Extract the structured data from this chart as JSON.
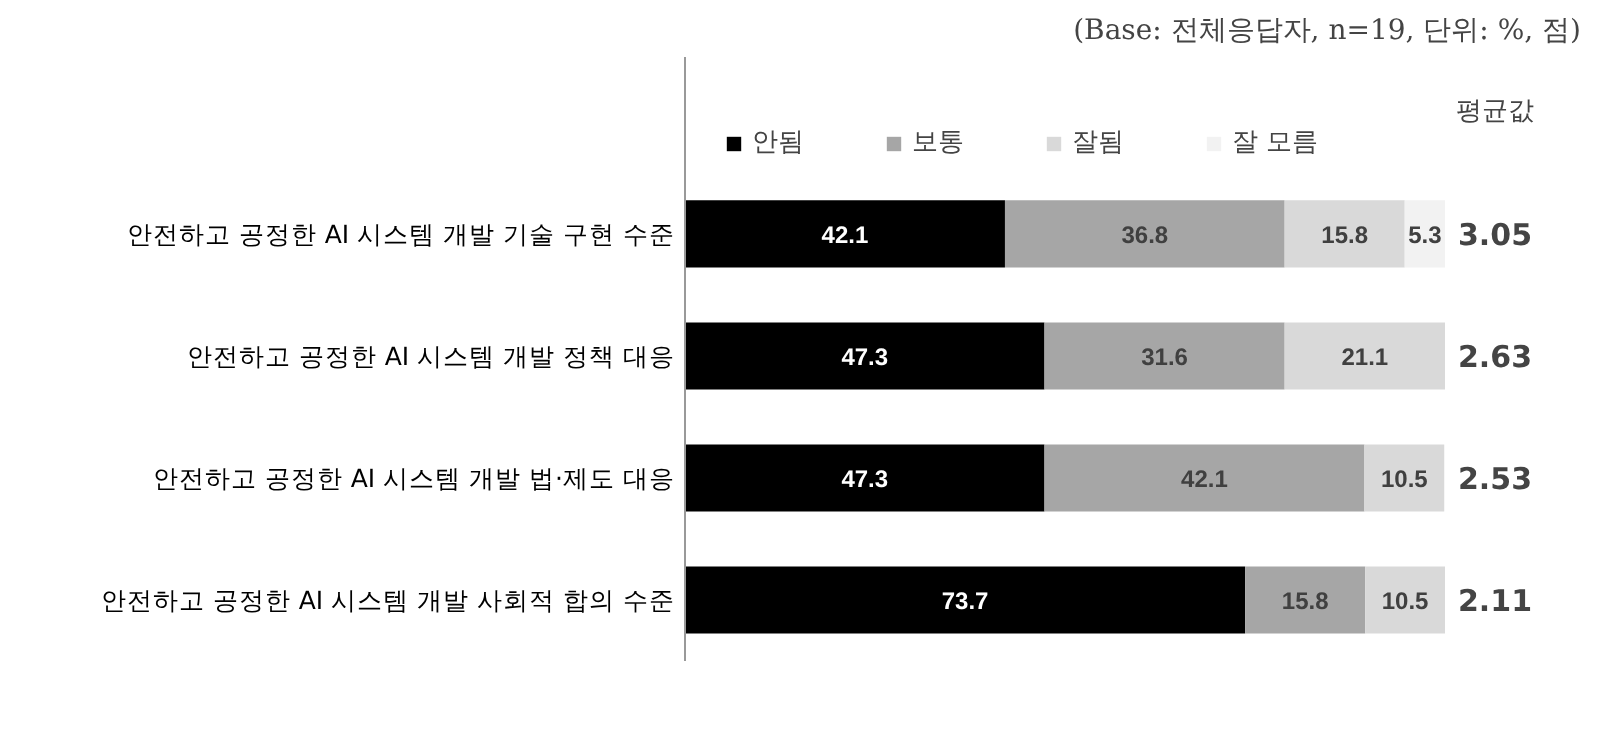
{
  "chart_data": {
    "type": "bar",
    "orientation": "horizontal",
    "stacked": true,
    "data_labels": true,
    "legend": "top",
    "grid": false,
    "subtitle": "(Base: 전체응답자, n=19, 단위: %, 점)",
    "categories": [
      "안전하고 공정한 AI 시스템 개발 기술 구현 수준",
      "안전하고 공정한 AI 시스템 개발 정책 대응",
      "안전하고 공정한 AI 시스템 개발 법·제도 대응",
      "안전하고 공정한 AI 시스템 개발 사회적 합의 수준"
    ],
    "series": [
      {
        "name": "안됨",
        "color": "#000000",
        "values": [
          42.1,
          47.3,
          47.3,
          73.7
        ]
      },
      {
        "name": "보통",
        "color": "#a6a6a6",
        "values": [
          36.8,
          31.6,
          42.1,
          15.8
        ]
      },
      {
        "name": "잘됨",
        "color": "#d9d9d9",
        "values": [
          15.8,
          21.1,
          10.5,
          10.5
        ]
      },
      {
        "name": "잘 모름",
        "color": "#f2f2f2",
        "values": [
          5.3,
          null,
          null,
          null
        ]
      }
    ],
    "annotations": [
      "평균값",
      "3.05",
      "2.63",
      "2.53",
      "2.11"
    ]
  }
}
